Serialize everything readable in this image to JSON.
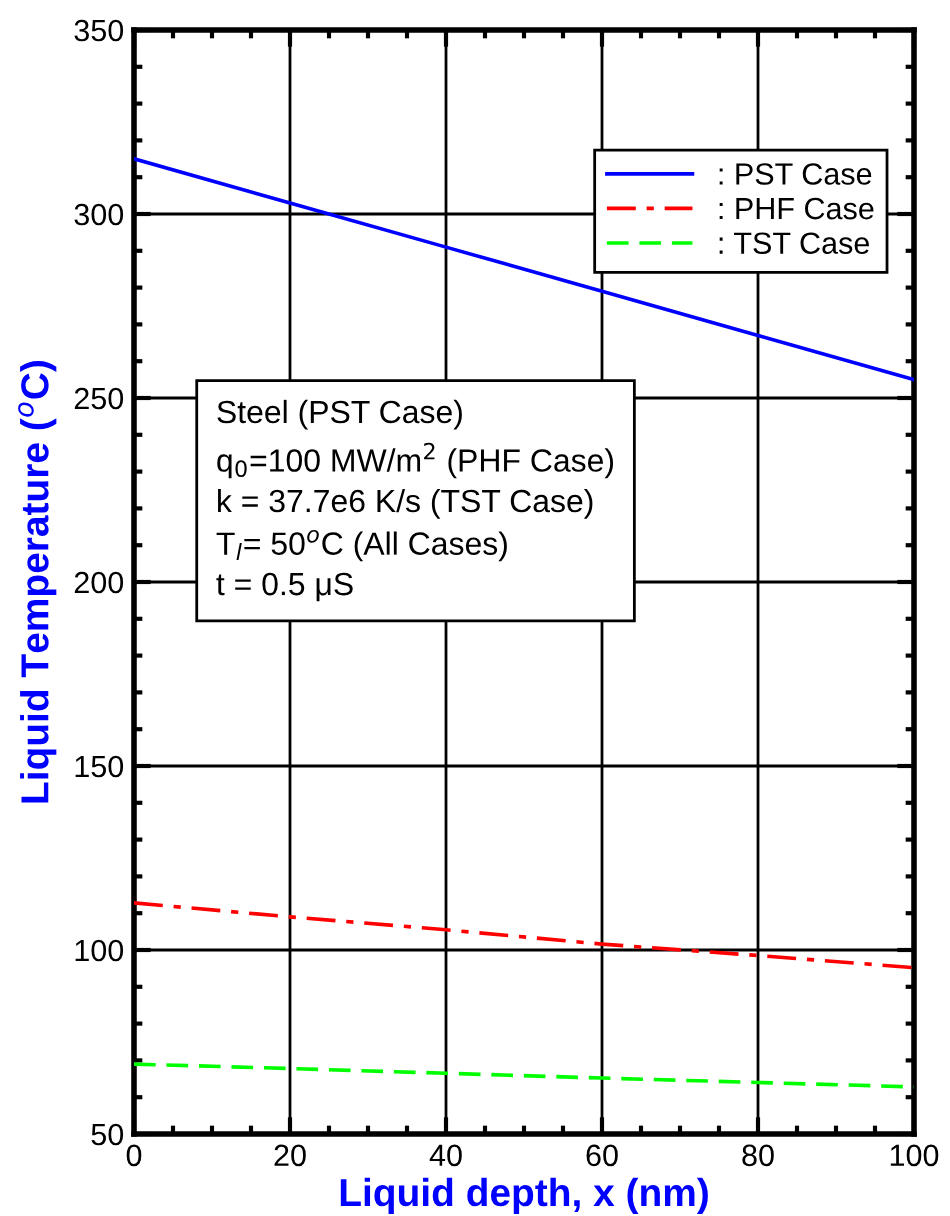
{
  "chart_data": {
    "type": "line",
    "xlabel": "Liquid depth, x (nm)",
    "ylabel": "Liquid Temperature ($^{o}$C)",
    "x": [
      0,
      20,
      40,
      60,
      80,
      100
    ],
    "series": [
      {
        "name": ": PST Case",
        "color": "#0000ff",
        "line_style": "solid",
        "values": [
          315,
          303,
          291,
          279,
          267,
          255
        ]
      },
      {
        "name": ": PHF Case",
        "color": "#ff0000",
        "line_style": "dashdot",
        "values": [
          112.8,
          109,
          105.5,
          101.6,
          98.5,
          95.2
        ]
      },
      {
        "name": ": TST Case",
        "color": "#00ff00",
        "line_style": "dashed",
        "values": [
          69,
          67.8,
          66.5,
          65.2,
          64,
          62.8
        ]
      }
    ],
    "xlim": [
      0,
      100
    ],
    "ylim": [
      50,
      350
    ],
    "xticks": [
      0,
      20,
      40,
      60,
      80,
      100
    ],
    "yticks": [
      50,
      100,
      150,
      200,
      250,
      300,
      350
    ],
    "grid": true,
    "legend": "top right",
    "marker": "none",
    "annotations": [
      "Steel (PST Case)\nq$_{0}$=100 MW/m$^{2}$ (PHF Case)\nk = 37.7e6 K/s (TST Case)\nT$_{l}$= 50$^{o}$C (All Cases)\nt = 0.5 μS"
    ]
  }
}
